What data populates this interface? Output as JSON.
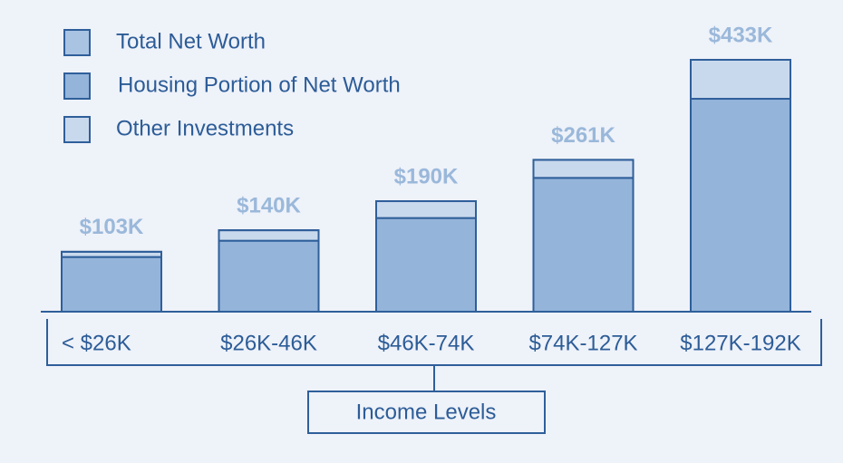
{
  "chart_data": {
    "type": "stacked_bar",
    "x_label": "Income Levels",
    "categories": [
      "< $26K",
      "$26K-46K",
      "$46K-74K",
      "$74K-127K",
      "$127K-192K"
    ],
    "series": [
      {
        "name": "Total Net Worth",
        "color": "#a9c3e3",
        "role": "total",
        "values": [
          103,
          140,
          190,
          261,
          433
        ],
        "value_labels": [
          "$103K",
          "$140K",
          "$190K",
          "$261K",
          "$433K"
        ]
      },
      {
        "name": "Housing Portion of Net Worth",
        "color": "#94b4da",
        "values": [
          94,
          122,
          161,
          230,
          366
        ]
      },
      {
        "name": "Other Investments",
        "color": "#c9d9ed",
        "values": [
          9,
          18,
          29,
          31,
          67
        ]
      }
    ]
  }
}
